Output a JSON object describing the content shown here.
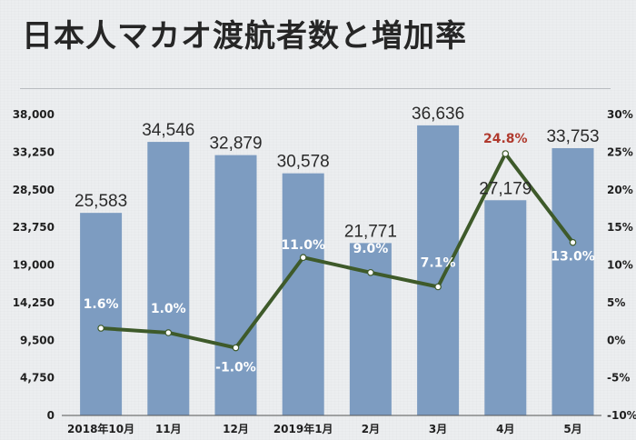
{
  "title": "日本人マカオ渡航者数と増加率",
  "chart_data": {
    "type": "bar",
    "categories": [
      "2018年10月",
      "11月",
      "12月",
      "2019年1月",
      "2月",
      "3月",
      "4月",
      "5月"
    ],
    "series": [
      {
        "type": "bar",
        "values": [
          25583,
          34546,
          32879,
          30578,
          21771,
          36636,
          27179,
          33753
        ],
        "labels": [
          "25,583",
          "34,546",
          "32,879",
          "30,578",
          "21,771",
          "36,636",
          "27,179",
          "33,753"
        ]
      },
      {
        "type": "line",
        "values": [
          1.6,
          1.0,
          -1.0,
          11.0,
          9.0,
          7.1,
          24.8,
          13.0
        ],
        "labels": [
          "1.6%",
          "1.0%",
          "-1.0%",
          "11.0%",
          "9.0%",
          "7.1%",
          "24.8%",
          "13.0%"
        ]
      }
    ],
    "y_left": {
      "ticks": [
        "0",
        "4,750",
        "9,500",
        "14,250",
        "19,000",
        "23,750",
        "28,500",
        "33,250",
        "38,000"
      ],
      "ylim": [
        0,
        38000
      ]
    },
    "y_right": {
      "ticks": [
        "-10%",
        "-5%",
        "0%",
        "5%",
        "10%",
        "15%",
        "20%",
        "25%",
        "30%"
      ],
      "ylim": [
        -10,
        30
      ]
    },
    "highlight_index": 6,
    "colors": {
      "bar": "#7d9cc1",
      "line": "#3e5a2a",
      "highlight_label": "#b03a2e",
      "marker": "#ffffff"
    }
  }
}
